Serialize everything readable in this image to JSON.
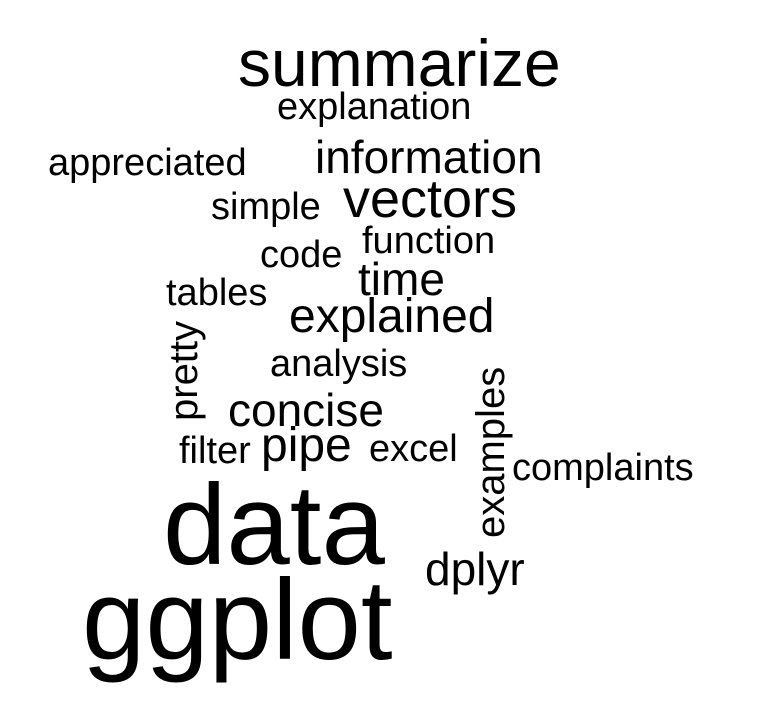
{
  "wordcloud": {
    "words": {
      "summarize": "summarize",
      "explanation": "explanation",
      "appreciated": "appreciated",
      "information": "information",
      "simple": "simple",
      "vectors": "vectors",
      "code": "code",
      "function": "function",
      "time": "time",
      "tables": "tables",
      "explained": "explained",
      "pretty": "pretty",
      "analysis": "analysis",
      "examples": "examples",
      "concise": "concise",
      "filter": "filter",
      "pipe": "pipe",
      "excel": "excel",
      "complaints": "complaints",
      "data": "data",
      "dplyr": "dplyr",
      "ggplot": "ggplot"
    },
    "text_color": "#000000",
    "background_color": "#ffffff"
  }
}
